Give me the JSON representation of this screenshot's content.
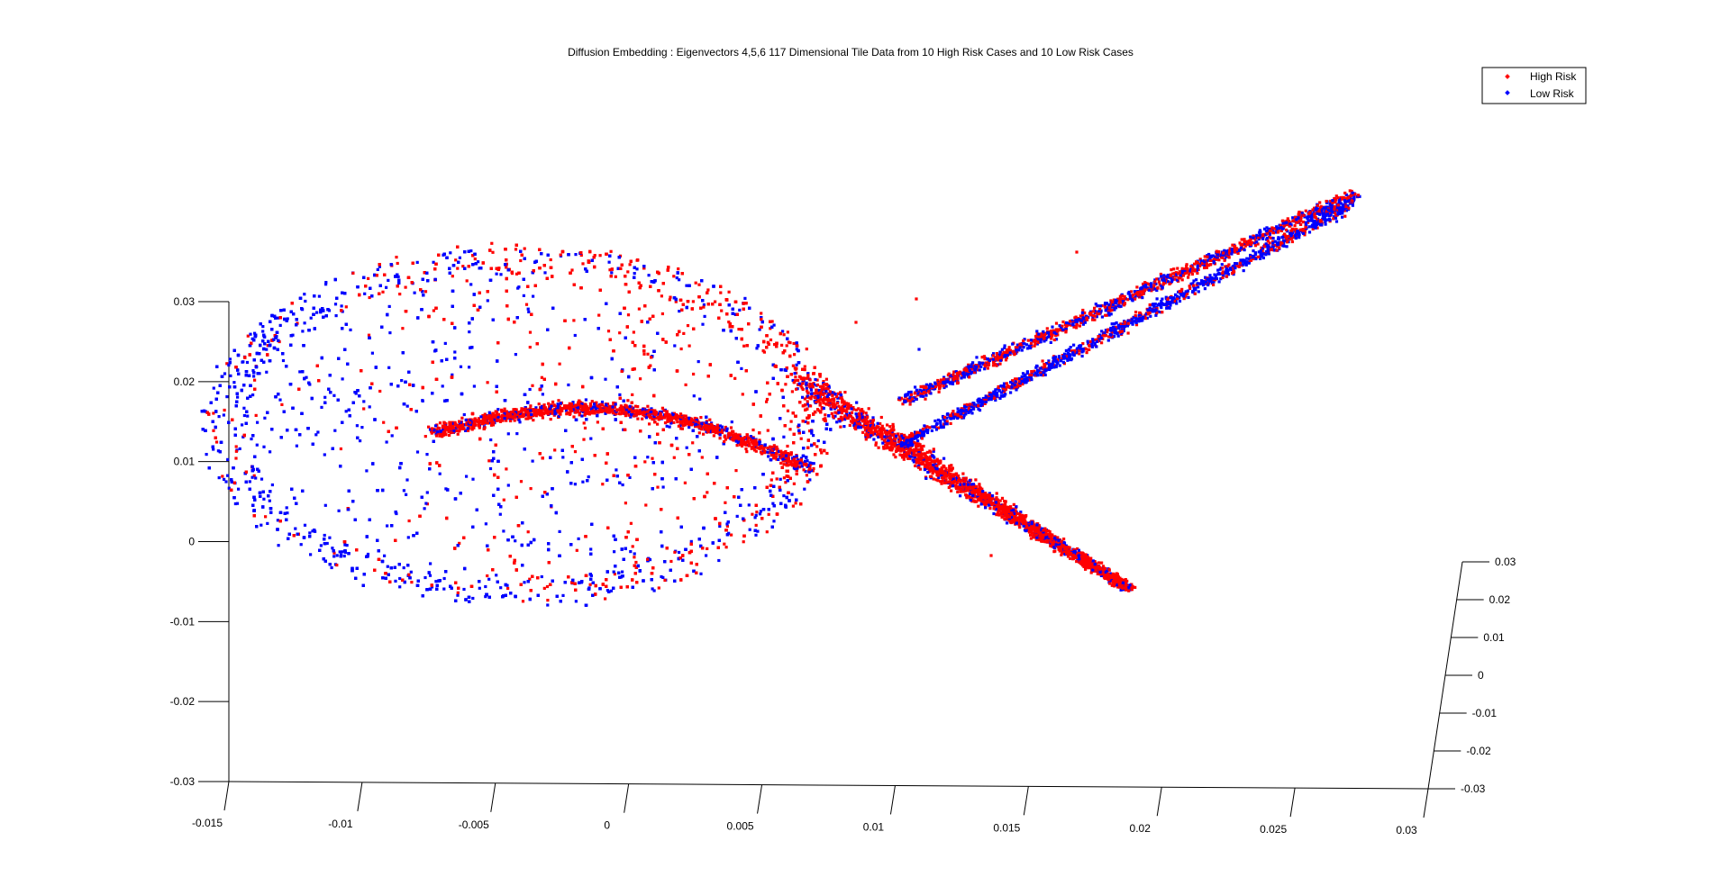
{
  "chart_data": {
    "type": "scatter",
    "projection": "3d",
    "title": "Diffusion Embedding : Eigenvectors 4,5,6 117 Dimensional Tile Data from 10 High Risk Cases and 10 Low Risk Cases",
    "xlabel": "",
    "ylabel": "",
    "zlabel": "",
    "grid": false,
    "legend": {
      "placement": "top-right",
      "entries": [
        "High Risk",
        "Low Risk"
      ]
    },
    "axes": {
      "x": {
        "range": [
          -0.015,
          0.03
        ],
        "ticks": [
          "-0.015",
          "-0.01",
          "-0.005",
          "0",
          "0.005",
          "0.01",
          "0.015",
          "0.02",
          "0.025",
          "0.03"
        ]
      },
      "y": {
        "range": [
          -0.03,
          0.03
        ],
        "ticks": [
          "0.03",
          "0.02",
          "0.01",
          "0",
          "-0.01",
          "-0.02",
          "-0.03"
        ]
      },
      "z": {
        "range": [
          -0.03,
          0.03
        ],
        "ticks": [
          "-0.03",
          "-0.02",
          "-0.01",
          "0",
          "0.01",
          "0.02",
          "0.03"
        ]
      }
    },
    "series": [
      {
        "name": "High Risk",
        "color": "#ff0000",
        "marker": "dot",
        "approx_points": 6000
      },
      {
        "name": "Low Risk",
        "color": "#0000ff",
        "marker": "dot",
        "approx_points": 6000
      }
    ]
  }
}
